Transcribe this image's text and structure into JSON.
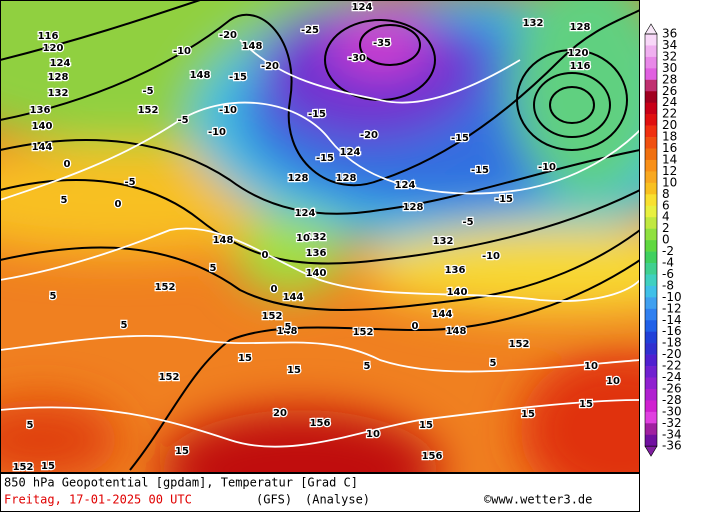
{
  "map": {
    "geopotential_labels": [
      116,
      120,
      124,
      128,
      132,
      136,
      140,
      144,
      148,
      148,
      152,
      124,
      132,
      128,
      120,
      116,
      124,
      128,
      128,
      124,
      128,
      124,
      132,
      132,
      136,
      140,
      136,
      140,
      144,
      144,
      148,
      148,
      148,
      152,
      152,
      152,
      152,
      152,
      156,
      156,
      152
    ],
    "temperature_labels": [
      -20,
      -25,
      -30,
      -35,
      -10,
      -15,
      -20,
      -5,
      -10,
      -15,
      -5,
      -10,
      -15,
      -20,
      -15,
      -15,
      -10,
      -15,
      -10,
      -5,
      0,
      0,
      -5,
      5,
      10,
      5,
      0,
      0,
      5,
      5,
      5,
      0,
      5,
      5,
      10,
      10,
      15,
      15,
      15,
      15,
      10,
      15,
      15,
      15,
      20,
      5
    ],
    "colorbar": {
      "labels": [
        36,
        34,
        32,
        30,
        28,
        26,
        24,
        22,
        20,
        18,
        16,
        14,
        12,
        10,
        8,
        6,
        4,
        2,
        0,
        -2,
        -4,
        -6,
        -8,
        -10,
        -12,
        -14,
        -16,
        -18,
        -20,
        -22,
        -24,
        -26,
        -28,
        -30,
        -32,
        -34,
        -36
      ],
      "colors": [
        "#f8d8f8",
        "#f0b0f0",
        "#e888e8",
        "#e060e0",
        "#c03070",
        "#a00020",
        "#c80018",
        "#e01010",
        "#f03010",
        "#f05010",
        "#f07010",
        "#f89018",
        "#f8a820",
        "#f8c020",
        "#f8e030",
        "#e8f040",
        "#c0e840",
        "#90e040",
        "#60d840",
        "#40d060",
        "#40d090",
        "#40d0c0",
        "#40c0e8",
        "#40a0f0",
        "#3080f0",
        "#2060e8",
        "#2040d8",
        "#3030d0",
        "#5020d0",
        "#7020d0",
        "#9020d0",
        "#b020d0",
        "#d020d0",
        "#e040e0",
        "#a020a0",
        "#7010a0"
      ],
      "top_color": "#f8e8f8",
      "bottom_color": "#8020a0"
    }
  },
  "footer": {
    "description": "850 hPa Geopotential [gpdam], Temperatur [Grad C]",
    "date": "Freitag, 17-01-2025  00 UTC",
    "model": "(GFS)",
    "run": "(Analyse)",
    "source": "©www.wetter3.de"
  }
}
